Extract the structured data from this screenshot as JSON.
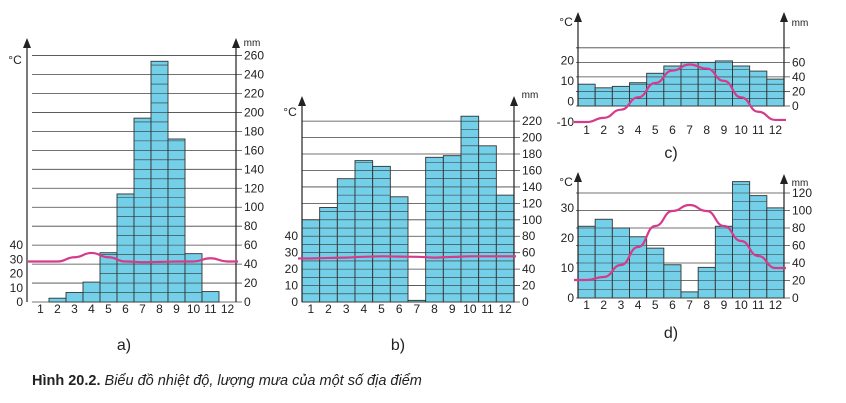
{
  "caption": {
    "label": "Hình 20.2.",
    "text": "Biểu đồ nhiệt độ, lượng mưa của một số địa điểm"
  },
  "colors": {
    "bar_fill": "#74cfe8",
    "line": "#d63a8c",
    "grid": "#444444"
  },
  "chart_data": [
    {
      "type": "bar",
      "panel_label": "a)",
      "left_unit": "°C",
      "right_unit": "mm",
      "categories": [
        "1",
        "2",
        "3",
        "4",
        "5",
        "6",
        "7",
        "8",
        "9",
        "10",
        "11",
        "12"
      ],
      "series": [
        {
          "type": "bar",
          "axis": "right",
          "values": [
            0,
            4,
            10,
            21,
            52,
            114,
            194,
            254,
            172,
            51,
            11,
            0
          ]
        },
        {
          "type": "line",
          "axis": "left",
          "values": [
            28.5,
            28.5,
            31.5,
            34.5,
            31.5,
            28.5,
            28,
            28.2,
            28.5,
            28.5,
            30.8,
            28.5
          ]
        }
      ],
      "left_ticks": [
        0,
        10,
        20,
        30,
        40
      ],
      "right_ticks": [
        0,
        20,
        40,
        60,
        80,
        100,
        120,
        140,
        160,
        180,
        200,
        220,
        240,
        260
      ],
      "left_ylim": [
        0,
        40
      ],
      "right_ylim": [
        0,
        260
      ]
    },
    {
      "type": "bar",
      "panel_label": "b)",
      "left_unit": "°C",
      "right_unit": "mm",
      "categories": [
        "1",
        "2",
        "3",
        "4",
        "5",
        "6",
        "7",
        "8",
        "9",
        "10",
        "11",
        "12"
      ],
      "series": [
        {
          "type": "bar",
          "axis": "right",
          "values": [
            100,
            115,
            150,
            172,
            165,
            128,
            2,
            176,
            178,
            226,
            190,
            130
          ]
        },
        {
          "type": "line",
          "axis": "left",
          "values": [
            26.5,
            26.8,
            27,
            27.5,
            27.8,
            27.6,
            27.5,
            27,
            27.4,
            27.8,
            27.8,
            27.8
          ]
        }
      ],
      "left_ticks": [
        0,
        10,
        20,
        30,
        40
      ],
      "right_ticks": [
        0,
        20,
        40,
        60,
        80,
        100,
        120,
        140,
        160,
        180,
        200,
        220
      ],
      "left_ylim": [
        0,
        40
      ],
      "right_ylim": [
        0,
        220
      ]
    },
    {
      "type": "bar",
      "panel_label": "c)",
      "left_unit": "°C",
      "right_unit": "mm",
      "categories": [
        "1",
        "2",
        "3",
        "4",
        "5",
        "6",
        "7",
        "8",
        "9",
        "10",
        "11",
        "12"
      ],
      "series": [
        {
          "type": "bar",
          "axis": "right",
          "values": [
            30,
            25,
            27,
            32,
            45,
            55,
            60,
            60,
            62,
            55,
            48,
            37
          ]
        },
        {
          "type": "line",
          "axis": "left",
          "values": [
            -10,
            -8,
            -4,
            2,
            9,
            15,
            18,
            16,
            10,
            2,
            -5,
            -9
          ]
        }
      ],
      "left_ticks": [
        -10,
        0,
        10,
        20
      ],
      "right_ticks": [
        0,
        20,
        40,
        60
      ],
      "left_ylim": [
        -10,
        30
      ],
      "right_ylim": [
        -20,
        70
      ]
    },
    {
      "type": "bar",
      "panel_label": "d)",
      "left_unit": "°C",
      "right_unit": "mm",
      "categories": [
        "1",
        "2",
        "3",
        "4",
        "5",
        "6",
        "7",
        "8",
        "9",
        "10",
        "11",
        "12"
      ],
      "series": [
        {
          "type": "bar",
          "axis": "right",
          "values": [
            82,
            90,
            80,
            70,
            57,
            38,
            7,
            35,
            82,
            133,
            117,
            103
          ]
        },
        {
          "type": "line",
          "axis": "left",
          "values": [
            6,
            7,
            11,
            17,
            24,
            29,
            31,
            29,
            24,
            19,
            14,
            10
          ]
        }
      ],
      "left_ticks": [
        0,
        10,
        20,
        30
      ],
      "right_ticks": [
        0,
        20,
        40,
        60,
        80,
        100,
        120
      ],
      "left_ylim": [
        0,
        50
      ],
      "right_ylim": [
        0,
        150
      ]
    }
  ]
}
